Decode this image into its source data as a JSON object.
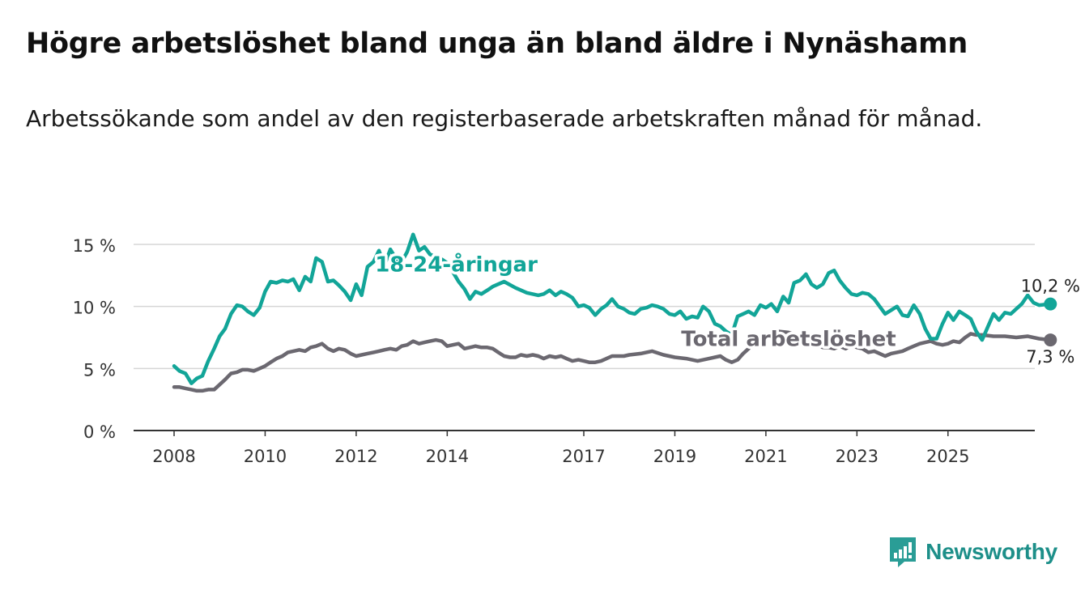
{
  "header": {
    "title": "Högre arbetslöshet bland unga än bland äldre i Nynäshamn",
    "subtitle": "Arbetssökande som andel av den registerbaserade arbetskraften månad för månad."
  },
  "brand": {
    "name": "Newsworthy",
    "color": "#2a9d96"
  },
  "chart_data": {
    "type": "line",
    "title": "Högre arbetslöshet bland unga än bland äldre i Nynäshamn",
    "subtitle": "Arbetssökande som andel av den registerbaserade arbetskraften månad för månad.",
    "xlabel": "",
    "ylabel": "",
    "ylim": [
      0,
      15
    ],
    "xlim": [
      2008,
      2026
    ],
    "grid": true,
    "y_ticks": [
      {
        "value": 0,
        "label": "0 %"
      },
      {
        "value": 5,
        "label": "5 %"
      },
      {
        "value": 10,
        "label": "10 %"
      },
      {
        "value": 15,
        "label": "15 %"
      }
    ],
    "x_ticks": [
      {
        "value": 2008,
        "label": "2008"
      },
      {
        "value": 2010,
        "label": "2010"
      },
      {
        "value": 2012,
        "label": "2012"
      },
      {
        "value": 2014,
        "label": "2014"
      },
      {
        "value": 2017,
        "label": "2017"
      },
      {
        "value": 2019,
        "label": "2019"
      },
      {
        "value": 2021,
        "label": "2021"
      },
      {
        "value": 2023,
        "label": "2023"
      },
      {
        "value": 2025,
        "label": "2025"
      }
    ],
    "series": [
      {
        "name": "18-24-åringar",
        "color": "#12a598",
        "end_label": "10,2 %",
        "points": [
          [
            2008.0,
            5.2
          ],
          [
            2008.12,
            4.8
          ],
          [
            2008.25,
            4.6
          ],
          [
            2008.38,
            3.8
          ],
          [
            2008.5,
            4.2
          ],
          [
            2008.62,
            4.4
          ],
          [
            2008.75,
            5.6
          ],
          [
            2008.88,
            6.6
          ],
          [
            2009.0,
            7.6
          ],
          [
            2009.12,
            8.2
          ],
          [
            2009.25,
            9.4
          ],
          [
            2009.38,
            10.1
          ],
          [
            2009.5,
            10.0
          ],
          [
            2009.62,
            9.6
          ],
          [
            2009.75,
            9.3
          ],
          [
            2009.88,
            9.9
          ],
          [
            2010.0,
            11.2
          ],
          [
            2010.12,
            12.0
          ],
          [
            2010.25,
            11.9
          ],
          [
            2010.38,
            12.1
          ],
          [
            2010.5,
            12.0
          ],
          [
            2010.62,
            12.2
          ],
          [
            2010.75,
            11.3
          ],
          [
            2010.88,
            12.4
          ],
          [
            2011.0,
            12.0
          ],
          [
            2011.12,
            13.9
          ],
          [
            2011.25,
            13.6
          ],
          [
            2011.38,
            12.0
          ],
          [
            2011.5,
            12.1
          ],
          [
            2011.62,
            11.7
          ],
          [
            2011.75,
            11.2
          ],
          [
            2011.88,
            10.5
          ],
          [
            2012.0,
            11.8
          ],
          [
            2012.12,
            10.9
          ],
          [
            2012.25,
            13.2
          ],
          [
            2012.38,
            13.6
          ],
          [
            2012.5,
            14.5
          ],
          [
            2012.62,
            13.3
          ],
          [
            2012.75,
            14.6
          ],
          [
            2012.88,
            13.8
          ],
          [
            2013.0,
            13.6
          ],
          [
            2013.12,
            14.4
          ],
          [
            2013.25,
            15.8
          ],
          [
            2013.38,
            14.5
          ],
          [
            2013.5,
            14.8
          ],
          [
            2013.62,
            14.2
          ],
          [
            2013.75,
            14.0
          ],
          [
            2013.88,
            13.8
          ],
          [
            2014.0,
            13.5
          ],
          [
            2014.12,
            12.8
          ],
          [
            2014.25,
            12.0
          ],
          [
            2014.38,
            11.4
          ],
          [
            2014.5,
            10.6
          ],
          [
            2014.62,
            11.2
          ],
          [
            2014.75,
            11.0
          ],
          [
            2014.88,
            11.3
          ],
          [
            2015.0,
            11.6
          ],
          [
            2015.25,
            12.0
          ],
          [
            2015.5,
            11.5
          ],
          [
            2015.75,
            11.1
          ],
          [
            2016.0,
            10.9
          ],
          [
            2016.12,
            11.0
          ],
          [
            2016.25,
            11.3
          ],
          [
            2016.38,
            10.9
          ],
          [
            2016.5,
            11.2
          ],
          [
            2016.62,
            11.0
          ],
          [
            2016.75,
            10.7
          ],
          [
            2016.88,
            10.0
          ],
          [
            2017.0,
            10.1
          ],
          [
            2017.12,
            9.9
          ],
          [
            2017.25,
            9.3
          ],
          [
            2017.38,
            9.8
          ],
          [
            2017.5,
            10.1
          ],
          [
            2017.62,
            10.6
          ],
          [
            2017.75,
            10.0
          ],
          [
            2017.88,
            9.8
          ],
          [
            2018.0,
            9.5
          ],
          [
            2018.12,
            9.4
          ],
          [
            2018.25,
            9.8
          ],
          [
            2018.38,
            9.9
          ],
          [
            2018.5,
            10.1
          ],
          [
            2018.62,
            10.0
          ],
          [
            2018.75,
            9.8
          ],
          [
            2018.88,
            9.4
          ],
          [
            2019.0,
            9.3
          ],
          [
            2019.12,
            9.6
          ],
          [
            2019.25,
            9.0
          ],
          [
            2019.38,
            9.2
          ],
          [
            2019.5,
            9.1
          ],
          [
            2019.62,
            10.0
          ],
          [
            2019.75,
            9.6
          ],
          [
            2019.88,
            8.6
          ],
          [
            2020.0,
            8.4
          ],
          [
            2020.12,
            8.0
          ],
          [
            2020.25,
            7.7
          ],
          [
            2020.38,
            9.2
          ],
          [
            2020.5,
            9.4
          ],
          [
            2020.62,
            9.6
          ],
          [
            2020.75,
            9.3
          ],
          [
            2020.88,
            10.1
          ],
          [
            2021.0,
            9.9
          ],
          [
            2021.12,
            10.2
          ],
          [
            2021.25,
            9.6
          ],
          [
            2021.38,
            10.8
          ],
          [
            2021.5,
            10.3
          ],
          [
            2021.62,
            11.9
          ],
          [
            2021.75,
            12.1
          ],
          [
            2021.88,
            12.6
          ],
          [
            2022.0,
            11.8
          ],
          [
            2022.12,
            11.5
          ],
          [
            2022.25,
            11.8
          ],
          [
            2022.38,
            12.7
          ],
          [
            2022.5,
            12.9
          ],
          [
            2022.62,
            12.1
          ],
          [
            2022.75,
            11.5
          ],
          [
            2022.88,
            11.0
          ],
          [
            2023.0,
            10.9
          ],
          [
            2023.12,
            11.1
          ],
          [
            2023.25,
            11.0
          ],
          [
            2023.38,
            10.6
          ],
          [
            2023.5,
            10.0
          ],
          [
            2023.62,
            9.4
          ],
          [
            2023.75,
            9.7
          ],
          [
            2023.88,
            10.0
          ],
          [
            2024.0,
            9.3
          ],
          [
            2024.12,
            9.2
          ],
          [
            2024.25,
            10.1
          ],
          [
            2024.38,
            9.4
          ],
          [
            2024.5,
            8.2
          ],
          [
            2024.62,
            7.4
          ],
          [
            2024.75,
            7.4
          ],
          [
            2024.88,
            8.6
          ],
          [
            2025.0,
            9.5
          ],
          [
            2025.12,
            8.9
          ],
          [
            2025.25,
            9.6
          ],
          [
            2025.38,
            9.3
          ],
          [
            2025.5,
            9.0
          ],
          [
            2025.62,
            8.0
          ],
          [
            2025.75,
            7.3
          ],
          [
            2025.88,
            8.4
          ],
          [
            2026.0,
            9.4
          ],
          [
            2026.12,
            8.9
          ],
          [
            2026.25,
            9.5
          ],
          [
            2026.38,
            9.4
          ],
          [
            2026.5,
            9.8
          ],
          [
            2026.62,
            10.2
          ],
          [
            2026.75,
            10.9
          ],
          [
            2026.88,
            10.3
          ],
          [
            2027.0,
            10.1
          ],
          [
            2027.25,
            10.2
          ]
        ]
      },
      {
        "name": "Total arbetslöshet",
        "color": "#6b6870",
        "end_label": "7,3 %",
        "points": [
          [
            2008.0,
            3.5
          ],
          [
            2008.12,
            3.5
          ],
          [
            2008.25,
            3.4
          ],
          [
            2008.38,
            3.3
          ],
          [
            2008.5,
            3.2
          ],
          [
            2008.62,
            3.2
          ],
          [
            2008.75,
            3.3
          ],
          [
            2008.88,
            3.3
          ],
          [
            2009.0,
            3.7
          ],
          [
            2009.12,
            4.1
          ],
          [
            2009.25,
            4.6
          ],
          [
            2009.38,
            4.7
          ],
          [
            2009.5,
            4.9
          ],
          [
            2009.62,
            4.9
          ],
          [
            2009.75,
            4.8
          ],
          [
            2009.88,
            5.0
          ],
          [
            2010.0,
            5.2
          ],
          [
            2010.12,
            5.5
          ],
          [
            2010.25,
            5.8
          ],
          [
            2010.38,
            6.0
          ],
          [
            2010.5,
            6.3
          ],
          [
            2010.62,
            6.4
          ],
          [
            2010.75,
            6.5
          ],
          [
            2010.88,
            6.4
          ],
          [
            2011.0,
            6.7
          ],
          [
            2011.12,
            6.8
          ],
          [
            2011.25,
            7.0
          ],
          [
            2011.38,
            6.6
          ],
          [
            2011.5,
            6.4
          ],
          [
            2011.62,
            6.6
          ],
          [
            2011.75,
            6.5
          ],
          [
            2011.88,
            6.2
          ],
          [
            2012.0,
            6.0
          ],
          [
            2012.12,
            6.1
          ],
          [
            2012.25,
            6.2
          ],
          [
            2012.38,
            6.3
          ],
          [
            2012.5,
            6.4
          ],
          [
            2012.62,
            6.5
          ],
          [
            2012.75,
            6.6
          ],
          [
            2012.88,
            6.5
          ],
          [
            2013.0,
            6.8
          ],
          [
            2013.12,
            6.9
          ],
          [
            2013.25,
            7.2
          ],
          [
            2013.38,
            7.0
          ],
          [
            2013.5,
            7.1
          ],
          [
            2013.62,
            7.2
          ],
          [
            2013.75,
            7.3
          ],
          [
            2013.88,
            7.2
          ],
          [
            2014.0,
            6.8
          ],
          [
            2014.12,
            6.9
          ],
          [
            2014.25,
            7.0
          ],
          [
            2014.38,
            6.6
          ],
          [
            2014.5,
            6.7
          ],
          [
            2014.62,
            6.8
          ],
          [
            2014.75,
            6.7
          ],
          [
            2014.88,
            6.7
          ],
          [
            2015.0,
            6.6
          ],
          [
            2015.12,
            6.3
          ],
          [
            2015.25,
            6.0
          ],
          [
            2015.38,
            5.9
          ],
          [
            2015.5,
            5.9
          ],
          [
            2015.62,
            6.1
          ],
          [
            2015.75,
            6.0
          ],
          [
            2015.88,
            6.1
          ],
          [
            2016.0,
            6.0
          ],
          [
            2016.12,
            5.8
          ],
          [
            2016.25,
            6.0
          ],
          [
            2016.38,
            5.9
          ],
          [
            2016.5,
            6.0
          ],
          [
            2016.62,
            5.8
          ],
          [
            2016.75,
            5.6
          ],
          [
            2016.88,
            5.7
          ],
          [
            2017.0,
            5.6
          ],
          [
            2017.12,
            5.5
          ],
          [
            2017.25,
            5.5
          ],
          [
            2017.38,
            5.6
          ],
          [
            2017.5,
            5.8
          ],
          [
            2017.62,
            6.0
          ],
          [
            2017.75,
            6.0
          ],
          [
            2017.88,
            6.0
          ],
          [
            2018.0,
            6.1
          ],
          [
            2018.25,
            6.2
          ],
          [
            2018.5,
            6.4
          ],
          [
            2018.75,
            6.1
          ],
          [
            2019.0,
            5.9
          ],
          [
            2019.25,
            5.8
          ],
          [
            2019.5,
            5.6
          ],
          [
            2019.75,
            5.8
          ],
          [
            2020.0,
            6.0
          ],
          [
            2020.12,
            5.7
          ],
          [
            2020.25,
            5.5
          ],
          [
            2020.38,
            5.7
          ],
          [
            2020.5,
            6.2
          ],
          [
            2020.62,
            6.6
          ],
          [
            2020.75,
            7.2
          ],
          [
            2020.88,
            7.5
          ],
          [
            2021.0,
            7.7
          ],
          [
            2021.12,
            7.8
          ],
          [
            2021.25,
            8.0
          ],
          [
            2021.5,
            7.9
          ],
          [
            2021.75,
            7.6
          ],
          [
            2022.0,
            7.3
          ],
          [
            2022.12,
            6.9
          ],
          [
            2022.25,
            6.7
          ],
          [
            2022.38,
            6.7
          ],
          [
            2022.5,
            6.6
          ],
          [
            2022.62,
            6.8
          ],
          [
            2022.75,
            6.6
          ],
          [
            2022.88,
            6.9
          ],
          [
            2023.0,
            6.7
          ],
          [
            2023.12,
            6.6
          ],
          [
            2023.25,
            6.3
          ],
          [
            2023.38,
            6.4
          ],
          [
            2023.5,
            6.2
          ],
          [
            2023.62,
            6.0
          ],
          [
            2023.75,
            6.2
          ],
          [
            2023.88,
            6.3
          ],
          [
            2024.0,
            6.4
          ],
          [
            2024.12,
            6.6
          ],
          [
            2024.25,
            6.8
          ],
          [
            2024.38,
            7.0
          ],
          [
            2024.5,
            7.1
          ],
          [
            2024.62,
            7.2
          ],
          [
            2024.75,
            7.0
          ],
          [
            2024.88,
            6.9
          ],
          [
            2025.0,
            7.0
          ],
          [
            2025.12,
            7.2
          ],
          [
            2025.25,
            7.1
          ],
          [
            2025.38,
            7.5
          ],
          [
            2025.5,
            7.8
          ],
          [
            2025.62,
            7.7
          ],
          [
            2025.75,
            7.7
          ],
          [
            2026.0,
            7.6
          ],
          [
            2026.25,
            7.6
          ],
          [
            2026.5,
            7.5
          ],
          [
            2026.75,
            7.6
          ],
          [
            2027.0,
            7.4
          ],
          [
            2027.25,
            7.3
          ]
        ]
      }
    ],
    "annotations": [
      {
        "text": "18-24-åringar",
        "series": 0,
        "x": 2014.2,
        "y": 12.8
      },
      {
        "text": "Total arbetslöshet",
        "series": 1,
        "x": 2021.5,
        "y": 6.8
      }
    ]
  }
}
